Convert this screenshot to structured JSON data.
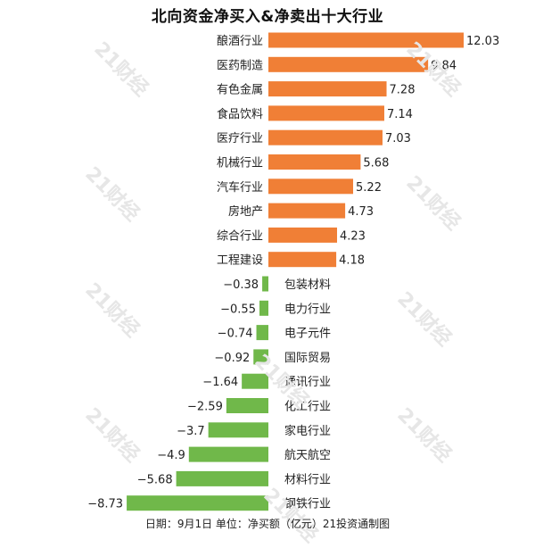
{
  "chart_data": {
    "type": "bar",
    "orientation": "horizontal",
    "title": "北向资金净买入&净卖出十大行业",
    "categories": [
      "酿酒行业",
      "医药制造",
      "有色金属",
      "食品饮料",
      "医疗行业",
      "机械行业",
      "汽车行业",
      "房地产",
      "综合行业",
      "工程建设",
      "包装材料",
      "电力行业",
      "电子元件",
      "国际贸易",
      "通讯行业",
      "化工行业",
      "家电行业",
      "航天航空",
      "材料行业",
      "钢铁行业"
    ],
    "values": [
      12.03,
      9.84,
      7.28,
      7.14,
      7.03,
      5.68,
      5.22,
      4.73,
      4.23,
      4.18,
      -0.38,
      -0.55,
      -0.74,
      -0.92,
      -1.64,
      -2.59,
      -3.7,
      -4.9,
      -5.68,
      -8.73
    ],
    "value_labels": [
      "12.03",
      "9.84",
      "7.28",
      "7.14",
      "7.03",
      "5.68",
      "5.22",
      "4.73",
      "4.23",
      "4.18",
      "−0.38",
      "−0.55",
      "−0.74",
      "−0.92",
      "−1.64",
      "−2.59",
      "−3.7",
      "−4.9",
      "−5.68",
      "−8.73"
    ],
    "colors": {
      "positive": "#f07f36",
      "negative": "#70b84a"
    },
    "grid": false,
    "legend": "none",
    "note": "日期：9月1日 单位：净买额（亿元）21投资通制图"
  },
  "watermark": "21财经"
}
